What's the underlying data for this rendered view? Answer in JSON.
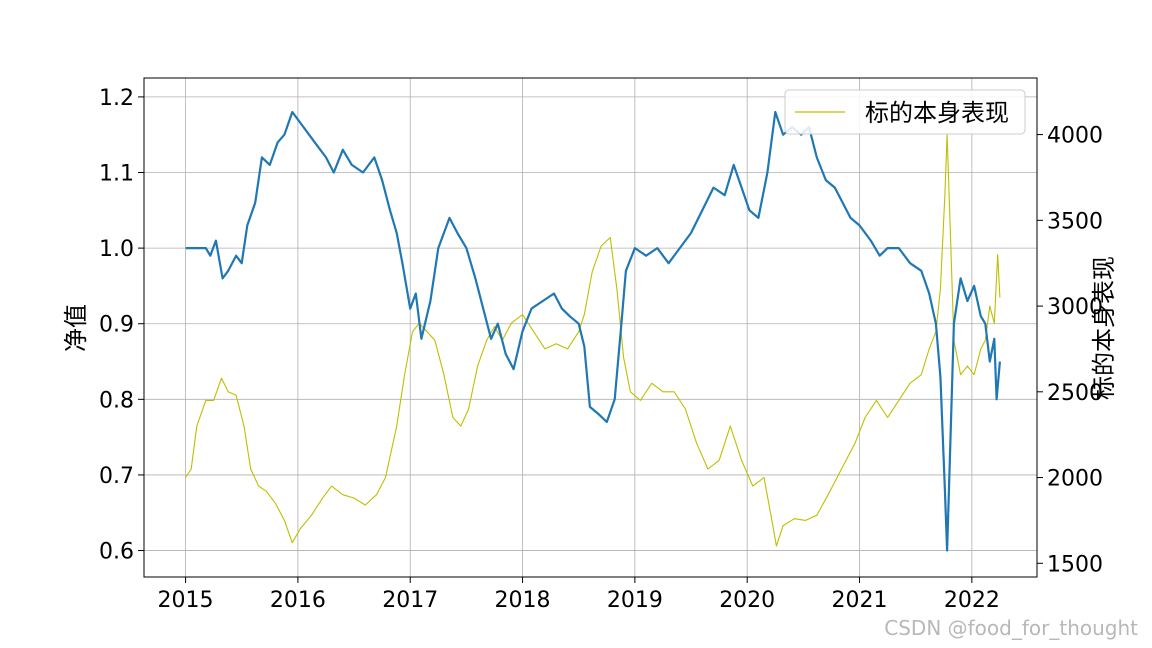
{
  "chart_data": {
    "type": "line",
    "title": "",
    "xlabel": "",
    "ylabel_left": "净值",
    "ylabel_right": "标的本身表现",
    "x_ticks": [
      "2015",
      "2016",
      "2017",
      "2018",
      "2019",
      "2020",
      "2021",
      "2022"
    ],
    "xlim": [
      2014.63,
      2022.58
    ],
    "y_left_ticks": [
      "0.6",
      "0.7",
      "0.8",
      "0.9",
      "1.0",
      "1.1",
      "1.2"
    ],
    "y_left_lim": [
      0.565,
      1.225
    ],
    "y_right_ticks": [
      "1500",
      "2000",
      "2500",
      "3000",
      "3500",
      "4000"
    ],
    "y_right_lim": [
      1420,
      4330
    ],
    "grid": true,
    "legend": {
      "entries": [
        "标的本身表现"
      ],
      "placement": "top-right"
    },
    "series": [
      {
        "axis": "left",
        "color": "#1f77b4",
        "points": [
          [
            2015.0,
            1.0
          ],
          [
            2015.18,
            1.0
          ],
          [
            2015.22,
            0.99
          ],
          [
            2015.27,
            1.01
          ],
          [
            2015.33,
            0.96
          ],
          [
            2015.38,
            0.97
          ],
          [
            2015.45,
            0.99
          ],
          [
            2015.5,
            0.98
          ],
          [
            2015.55,
            1.03
          ],
          [
            2015.62,
            1.06
          ],
          [
            2015.68,
            1.12
          ],
          [
            2015.75,
            1.11
          ],
          [
            2015.82,
            1.14
          ],
          [
            2015.88,
            1.15
          ],
          [
            2015.95,
            1.18
          ],
          [
            2016.05,
            1.16
          ],
          [
            2016.15,
            1.14
          ],
          [
            2016.25,
            1.12
          ],
          [
            2016.32,
            1.1
          ],
          [
            2016.4,
            1.13
          ],
          [
            2016.48,
            1.11
          ],
          [
            2016.58,
            1.1
          ],
          [
            2016.68,
            1.12
          ],
          [
            2016.75,
            1.09
          ],
          [
            2016.82,
            1.05
          ],
          [
            2016.88,
            1.02
          ],
          [
            2016.93,
            0.98
          ],
          [
            2017.0,
            0.92
          ],
          [
            2017.05,
            0.94
          ],
          [
            2017.1,
            0.88
          ],
          [
            2017.18,
            0.93
          ],
          [
            2017.25,
            1.0
          ],
          [
            2017.35,
            1.04
          ],
          [
            2017.42,
            1.02
          ],
          [
            2017.5,
            1.0
          ],
          [
            2017.58,
            0.96
          ],
          [
            2017.65,
            0.92
          ],
          [
            2017.72,
            0.88
          ],
          [
            2017.78,
            0.9
          ],
          [
            2017.85,
            0.86
          ],
          [
            2017.92,
            0.84
          ],
          [
            2018.0,
            0.89
          ],
          [
            2018.08,
            0.92
          ],
          [
            2018.18,
            0.93
          ],
          [
            2018.28,
            0.94
          ],
          [
            2018.35,
            0.92
          ],
          [
            2018.42,
            0.91
          ],
          [
            2018.5,
            0.9
          ],
          [
            2018.55,
            0.87
          ],
          [
            2018.6,
            0.79
          ],
          [
            2018.68,
            0.78
          ],
          [
            2018.75,
            0.77
          ],
          [
            2018.82,
            0.8
          ],
          [
            2018.88,
            0.9
          ],
          [
            2018.92,
            0.97
          ],
          [
            2019.0,
            1.0
          ],
          [
            2019.1,
            0.99
          ],
          [
            2019.2,
            1.0
          ],
          [
            2019.3,
            0.98
          ],
          [
            2019.4,
            1.0
          ],
          [
            2019.5,
            1.02
          ],
          [
            2019.6,
            1.05
          ],
          [
            2019.7,
            1.08
          ],
          [
            2019.8,
            1.07
          ],
          [
            2019.88,
            1.11
          ],
          [
            2019.95,
            1.08
          ],
          [
            2020.02,
            1.05
          ],
          [
            2020.1,
            1.04
          ],
          [
            2020.18,
            1.1
          ],
          [
            2020.25,
            1.18
          ],
          [
            2020.32,
            1.15
          ],
          [
            2020.4,
            1.16
          ],
          [
            2020.48,
            1.15
          ],
          [
            2020.55,
            1.16
          ],
          [
            2020.62,
            1.12
          ],
          [
            2020.7,
            1.09
          ],
          [
            2020.78,
            1.08
          ],
          [
            2020.85,
            1.06
          ],
          [
            2020.92,
            1.04
          ],
          [
            2021.0,
            1.03
          ],
          [
            2021.1,
            1.01
          ],
          [
            2021.18,
            0.99
          ],
          [
            2021.25,
            1.0
          ],
          [
            2021.35,
            1.0
          ],
          [
            2021.45,
            0.98
          ],
          [
            2021.55,
            0.97
          ],
          [
            2021.62,
            0.94
          ],
          [
            2021.68,
            0.9
          ],
          [
            2021.72,
            0.83
          ],
          [
            2021.76,
            0.68
          ],
          [
            2021.78,
            0.6
          ],
          [
            2021.8,
            0.7
          ],
          [
            2021.84,
            0.9
          ],
          [
            2021.9,
            0.96
          ],
          [
            2021.96,
            0.93
          ],
          [
            2022.02,
            0.95
          ],
          [
            2022.08,
            0.91
          ],
          [
            2022.12,
            0.9
          ],
          [
            2022.16,
            0.85
          ],
          [
            2022.2,
            0.88
          ],
          [
            2022.22,
            0.8
          ],
          [
            2022.25,
            0.85
          ]
        ]
      },
      {
        "axis": "right",
        "color": "#bfbf00",
        "points": [
          [
            2015.0,
            2000
          ],
          [
            2015.05,
            2050
          ],
          [
            2015.1,
            2300
          ],
          [
            2015.18,
            2450
          ],
          [
            2015.25,
            2450
          ],
          [
            2015.32,
            2580
          ],
          [
            2015.38,
            2500
          ],
          [
            2015.45,
            2480
          ],
          [
            2015.52,
            2300
          ],
          [
            2015.58,
            2050
          ],
          [
            2015.65,
            1950
          ],
          [
            2015.72,
            1920
          ],
          [
            2015.8,
            1850
          ],
          [
            2015.88,
            1750
          ],
          [
            2015.95,
            1620
          ],
          [
            2016.02,
            1700
          ],
          [
            2016.12,
            1780
          ],
          [
            2016.22,
            1880
          ],
          [
            2016.3,
            1950
          ],
          [
            2016.4,
            1900
          ],
          [
            2016.5,
            1880
          ],
          [
            2016.6,
            1840
          ],
          [
            2016.7,
            1900
          ],
          [
            2016.78,
            2000
          ],
          [
            2016.88,
            2300
          ],
          [
            2016.95,
            2600
          ],
          [
            2017.02,
            2850
          ],
          [
            2017.08,
            2900
          ],
          [
            2017.15,
            2850
          ],
          [
            2017.22,
            2800
          ],
          [
            2017.3,
            2600
          ],
          [
            2017.38,
            2350
          ],
          [
            2017.45,
            2300
          ],
          [
            2017.52,
            2400
          ],
          [
            2017.6,
            2650
          ],
          [
            2017.68,
            2800
          ],
          [
            2017.75,
            2880
          ],
          [
            2017.82,
            2800
          ],
          [
            2017.9,
            2900
          ],
          [
            2018.0,
            2950
          ],
          [
            2018.1,
            2850
          ],
          [
            2018.2,
            2750
          ],
          [
            2018.3,
            2780
          ],
          [
            2018.4,
            2750
          ],
          [
            2018.5,
            2850
          ],
          [
            2018.55,
            2950
          ],
          [
            2018.62,
            3200
          ],
          [
            2018.7,
            3350
          ],
          [
            2018.78,
            3400
          ],
          [
            2018.84,
            3100
          ],
          [
            2018.9,
            2700
          ],
          [
            2018.96,
            2500
          ],
          [
            2019.05,
            2450
          ],
          [
            2019.15,
            2550
          ],
          [
            2019.25,
            2500
          ],
          [
            2019.35,
            2500
          ],
          [
            2019.45,
            2400
          ],
          [
            2019.55,
            2200
          ],
          [
            2019.65,
            2050
          ],
          [
            2019.75,
            2100
          ],
          [
            2019.85,
            2300
          ],
          [
            2019.95,
            2100
          ],
          [
            2020.05,
            1950
          ],
          [
            2020.15,
            2000
          ],
          [
            2020.22,
            1750
          ],
          [
            2020.26,
            1600
          ],
          [
            2020.32,
            1720
          ],
          [
            2020.42,
            1760
          ],
          [
            2020.52,
            1750
          ],
          [
            2020.62,
            1780
          ],
          [
            2020.72,
            1900
          ],
          [
            2020.8,
            2000
          ],
          [
            2020.88,
            2100
          ],
          [
            2020.96,
            2200
          ],
          [
            2021.05,
            2350
          ],
          [
            2021.15,
            2450
          ],
          [
            2021.25,
            2350
          ],
          [
            2021.35,
            2450
          ],
          [
            2021.45,
            2550
          ],
          [
            2021.55,
            2600
          ],
          [
            2021.62,
            2750
          ],
          [
            2021.68,
            2850
          ],
          [
            2021.72,
            3100
          ],
          [
            2021.76,
            3650
          ],
          [
            2021.78,
            4000
          ],
          [
            2021.8,
            3600
          ],
          [
            2021.84,
            2800
          ],
          [
            2021.9,
            2600
          ],
          [
            2021.96,
            2650
          ],
          [
            2022.02,
            2600
          ],
          [
            2022.08,
            2750
          ],
          [
            2022.12,
            2800
          ],
          [
            2022.16,
            3000
          ],
          [
            2022.2,
            2900
          ],
          [
            2022.23,
            3300
          ],
          [
            2022.25,
            3050
          ]
        ]
      }
    ]
  },
  "watermark": "CSDN @food_for_thought"
}
